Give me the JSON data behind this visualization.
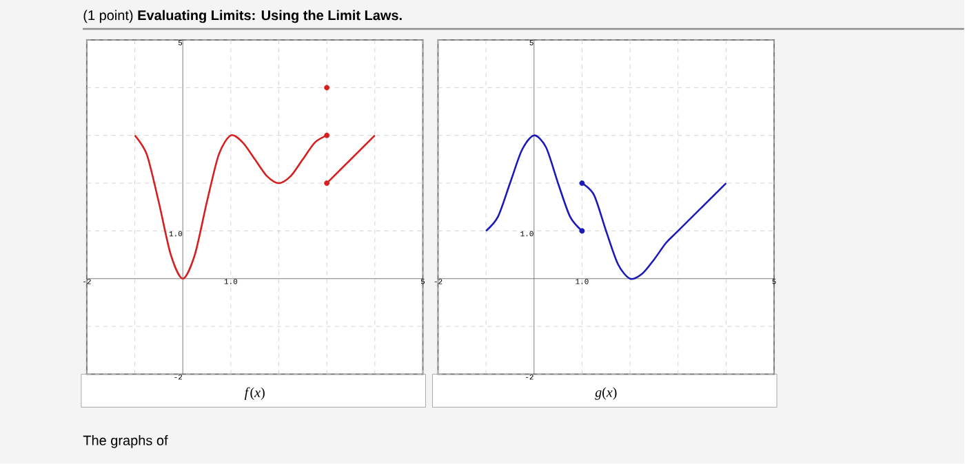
{
  "chart_data": [
    {
      "type": "line",
      "title": "(1 point) **Evaluating Limits: Using the Limit Laws.**",
      "xlabel": "*f*(*x*)",
      "annotations": [
        "The graphs of"
      ],
      "xlim": [
        -2,
        5
      ],
      "ylim": [
        -2,
        5
      ],
      "xticks": [
        {
          "value": -2,
          "label": "-2"
        },
        {
          "value": -1,
          "label": null
        },
        {
          "value": 0,
          "label": null
        },
        {
          "value": 1,
          "label": "1.0"
        },
        {
          "value": 2,
          "label": null
        },
        {
          "value": 3,
          "label": null
        },
        {
          "value": 4,
          "label": null
        },
        {
          "value": 5,
          "label": "5"
        }
      ],
      "yticks": [
        {
          "value": -2,
          "label": "-2"
        },
        {
          "value": -1,
          "label": null
        },
        {
          "value": 0,
          "label": null
        },
        {
          "value": 1,
          "label": "1.0"
        },
        {
          "value": 2,
          "label": null
        },
        {
          "value": 3,
          "label": null
        },
        {
          "value": 4,
          "label": null
        },
        {
          "value": 5,
          "label": "5"
        }
      ],
      "grid": true,
      "series": [
        {
          "color": "#d42020",
          "x": [
            -1,
            -0.75,
            -0.5,
            -0.25,
            0,
            0.25,
            0.5,
            0.75,
            1,
            1.25,
            1.5,
            1.75,
            2,
            2.25,
            2.5,
            2.75,
            3
          ],
          "values": [
            3,
            2.6,
            1.6,
            0.5,
            0,
            0.5,
            1.6,
            2.6,
            3,
            2.85,
            2.5,
            2.15,
            2,
            2.15,
            2.5,
            2.85,
            3
          ]
        },
        {
          "color": "#d42020",
          "x": [
            3,
            4
          ],
          "values": [
            2,
            3
          ]
        },
        {
          "type": "scatter",
          "marker": "circle",
          "color": "#d42020",
          "x": [
            3,
            3,
            3
          ],
          "values": [
            4,
            3,
            2
          ]
        }
      ]
    },
    {
      "type": "line",
      "xlabel": "*g*(*x*)",
      "xlim": [
        -2,
        5
      ],
      "ylim": [
        -2,
        5
      ],
      "xticks": [
        {
          "value": -2,
          "label": "-2"
        },
        {
          "value": -1,
          "label": null
        },
        {
          "value": 0,
          "label": null
        },
        {
          "value": 1,
          "label": "1.0"
        },
        {
          "value": 2,
          "label": null
        },
        {
          "value": 3,
          "label": null
        },
        {
          "value": 4,
          "label": null
        },
        {
          "value": 5,
          "label": "5"
        }
      ],
      "yticks": [
        {
          "value": -2,
          "label": "-2"
        },
        {
          "value": -1,
          "label": null
        },
        {
          "value": 0,
          "label": null
        },
        {
          "value": 1,
          "label": "1.0"
        },
        {
          "value": 2,
          "label": null
        },
        {
          "value": 3,
          "label": null
        },
        {
          "value": 4,
          "label": null
        },
        {
          "value": 5,
          "label": "5"
        }
      ],
      "grid": true,
      "series": [
        {
          "color": "#1a1ab8",
          "x": [
            -1,
            -0.75,
            -0.5,
            -0.25,
            0,
            0.25,
            0.5,
            0.75,
            1
          ],
          "values": [
            1,
            1.3,
            2,
            2.7,
            3,
            2.75,
            2,
            1.3,
            1
          ]
        },
        {
          "color": "#1a1ab8",
          "x": [
            1,
            1.25,
            1.5,
            1.75,
            2,
            2.25,
            2.5,
            2.75,
            3,
            4
          ],
          "values": [
            2,
            1.75,
            1,
            0.3,
            0,
            0.1,
            0.4,
            0.75,
            1,
            2
          ]
        },
        {
          "type": "scatter",
          "marker": "circle",
          "color": "#1a1ab8",
          "x": [
            1,
            1
          ],
          "values": [
            2,
            1
          ]
        }
      ]
    }
  ]
}
